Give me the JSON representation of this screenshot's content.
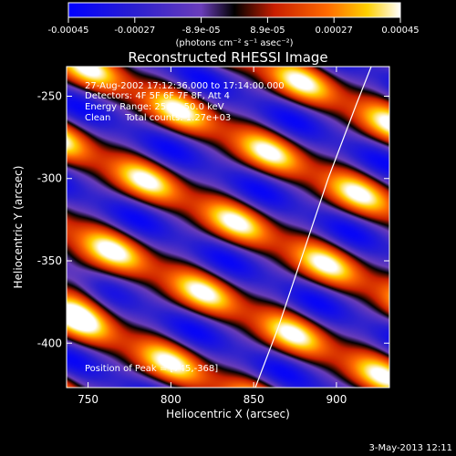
{
  "chart_data": {
    "type": "heatmap",
    "title": "Reconstructed RHESSI Image",
    "xlabel": "Heliocentric X (arcsec)",
    "ylabel": "Heliocentric Y (arcsec)",
    "xlim": [
      737,
      932
    ],
    "ylim": [
      -427,
      -232
    ],
    "x_ticks": [
      750,
      800,
      850,
      900
    ],
    "y_ticks": [
      -400,
      -350,
      -300,
      -250
    ],
    "colorbar": {
      "ticks": [
        "-0.00045",
        "-0.00027",
        "-8.9e-05",
        "8.9e-05",
        "0.00027",
        "0.00045"
      ],
      "units_label": "(photons cm⁻² s⁻¹ asec⁻²)",
      "range": [
        -0.00045,
        0.00045
      ]
    },
    "annotations": {
      "time_range": "27-Aug-2002 17:12:36.000 to 17:14:00.000",
      "detectors": "Detectors: 4F 5F 6F 7F 8F, Att 4",
      "energy_range": "Energy Range: 25.0 - 50.0 keV",
      "method_counts": "Clean     Total counts: 1.27e+03",
      "peak_position": "Position of Peak = [745,-368]"
    },
    "peak": {
      "x": 745,
      "y": -368
    },
    "limb_arc": [
      [
        851,
        -427
      ],
      [
        865,
        -390
      ],
      [
        880,
        -345
      ],
      [
        895,
        -300
      ],
      [
        912,
        -255
      ],
      [
        921,
        -232
      ]
    ],
    "image_pattern": {
      "wave_angle_deg": 25,
      "wavelength_arcsec": 47,
      "cell_wavelength_arcsec": 60
    },
    "colors": {
      "background": "#000000",
      "text": "#ffffff",
      "colormap": [
        "#0000ff",
        "#6a3dba",
        "#000000",
        "#c81e00",
        "#ff6a00",
        "#ffd000",
        "#ffffff"
      ]
    }
  },
  "footer": {
    "date": "3-May-2013 12:11"
  }
}
